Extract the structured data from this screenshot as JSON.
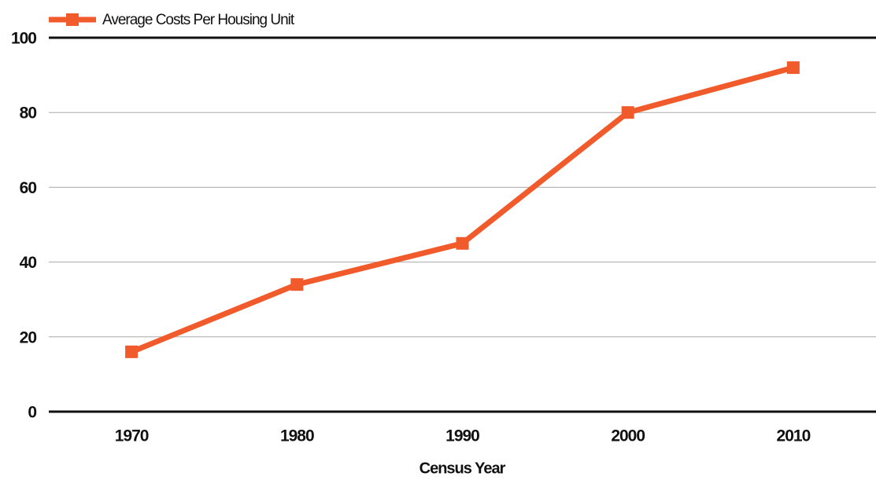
{
  "chart_data": {
    "type": "line",
    "x_label": "Census Year",
    "categories": [
      "1970",
      "1980",
      "1990",
      "2000",
      "2010"
    ],
    "series": [
      {
        "name": "Average Costs Per Housing Unit",
        "color": "#f15a2b",
        "values": [
          16,
          34,
          45,
          80,
          92
        ]
      }
    ],
    "ylim": [
      0,
      100
    ],
    "yticks": [
      0,
      20,
      40,
      60,
      80,
      100
    ],
    "grid": true,
    "legend": "top-left"
  }
}
